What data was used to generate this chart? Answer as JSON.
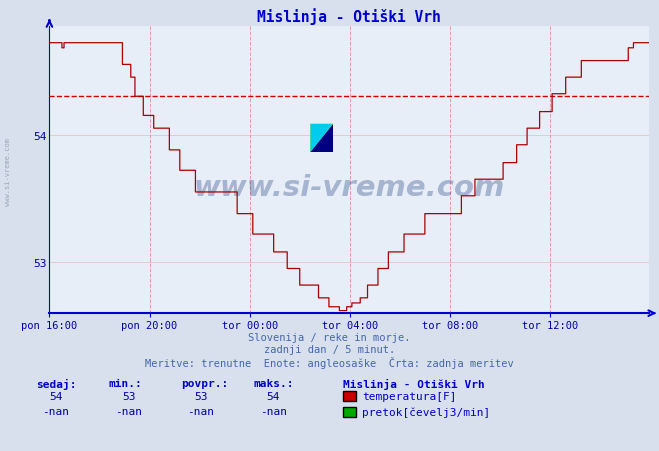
{
  "title": "Mislinja - Otiški Vrh",
  "subtitle1": "Slovenija / reke in morje.",
  "subtitle2": "zadnji dan / 5 minut.",
  "subtitle3": "Meritve: trenutne  Enote: angleosaške  Črta: zadnja meritev",
  "bg_color": "#d8e0ee",
  "plot_bg_color": "#e8eef8",
  "line_color": "#aa0000",
  "dashed_line_color": "#cc0000",
  "axis_color": "#0000cc",
  "title_color": "#0000cc",
  "label_color": "#0000aa",
  "text_color": "#4466aa",
  "x_tick_labels": [
    "pon 16:00",
    "pon 20:00",
    "tor 00:00",
    "tor 04:00",
    "tor 08:00",
    "tor 12:00"
  ],
  "x_tick_positions": [
    0,
    96,
    192,
    288,
    384,
    480
  ],
  "ylim": [
    52.6,
    54.85
  ],
  "yticks": [
    53,
    54
  ],
  "total_points": 576,
  "dashed_y": 54.3,
  "watermark": "www.si-vreme.com",
  "legend_title": "Mislinja - Otiški Vrh",
  "legend_items": [
    {
      "label": "temperatura[F]",
      "color": "#cc0000"
    },
    {
      "label": "pretok[čevelj3/min]",
      "color": "#00aa00"
    }
  ],
  "stats_headers": [
    "sedaj:",
    "min.:",
    "povpr.:",
    "maks.:"
  ],
  "stats_temp": [
    54,
    53,
    53,
    54
  ],
  "stats_flow": [
    "-nan",
    "-nan",
    "-nan",
    "-nan"
  ]
}
